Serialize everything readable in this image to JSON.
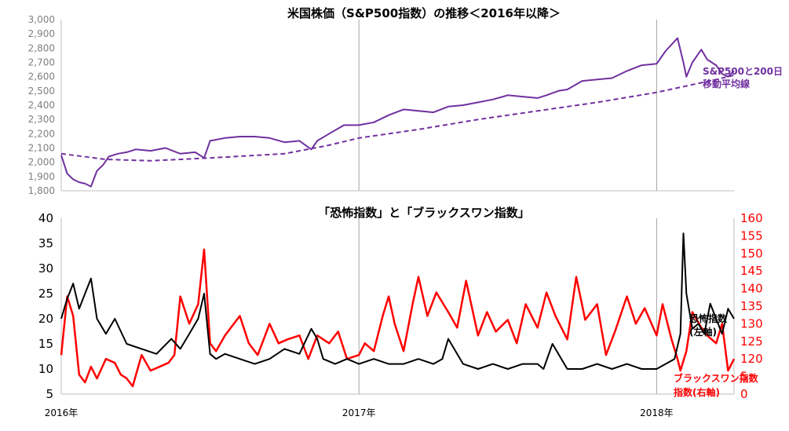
{
  "chart_data": [
    {
      "type": "line",
      "title": "米国株価（S&P500指数）の推移＜2016年以降＞",
      "ylim": [
        1800,
        3000
      ],
      "yticks": [
        "1,800",
        "1,900",
        "2,000",
        "2,100",
        "2,200",
        "2,300",
        "2,400",
        "2,500",
        "2,600",
        "2,700",
        "2,800",
        "2,900",
        "3,000"
      ],
      "xticks": [
        "2016年",
        "2017年",
        "2018年"
      ],
      "xrange": [
        2016.0,
        2018.26
      ],
      "series_label_lines": [
        "S&P500と200日",
        "移動平均線"
      ],
      "colors": {
        "line": "#7030A0",
        "axis_text": "#7f7f7f"
      },
      "series": [
        {
          "name": "S&P500",
          "style": "solid",
          "x": [
            2016.0,
            2016.02,
            2016.04,
            2016.06,
            2016.08,
            2016.1,
            2016.12,
            2016.14,
            2016.16,
            2016.19,
            2016.22,
            2016.25,
            2016.3,
            2016.35,
            2016.4,
            2016.45,
            2016.48,
            2016.5,
            2016.55,
            2016.6,
            2016.65,
            2016.7,
            2016.75,
            2016.8,
            2016.84,
            2016.86,
            2016.9,
            2016.95,
            2017.0,
            2017.05,
            2017.1,
            2017.15,
            2017.2,
            2017.25,
            2017.3,
            2017.35,
            2017.4,
            2017.45,
            2017.5,
            2017.55,
            2017.6,
            2017.63,
            2017.67,
            2017.7,
            2017.75,
            2017.8,
            2017.85,
            2017.9,
            2017.95,
            2018.0,
            2018.03,
            2018.07,
            2018.09,
            2018.1,
            2018.12,
            2018.15,
            2018.17,
            2018.2,
            2018.22,
            2018.24,
            2018.26
          ],
          "values": [
            2050,
            1920,
            1880,
            1860,
            1850,
            1830,
            1940,
            1980,
            2040,
            2060,
            2070,
            2090,
            2080,
            2100,
            2060,
            2070,
            2030,
            2150,
            2170,
            2180,
            2180,
            2170,
            2140,
            2150,
            2090,
            2150,
            2200,
            2260,
            2260,
            2280,
            2330,
            2370,
            2360,
            2350,
            2390,
            2400,
            2420,
            2440,
            2470,
            2460,
            2450,
            2470,
            2500,
            2510,
            2570,
            2580,
            2590,
            2640,
            2680,
            2690,
            2780,
            2870,
            2700,
            2600,
            2700,
            2790,
            2720,
            2680,
            2620,
            2600,
            2640
          ]
        },
        {
          "name": "200日移動平均線",
          "style": "dashed",
          "x": [
            2016.0,
            2016.15,
            2016.3,
            2016.5,
            2016.75,
            2016.9,
            2017.0,
            2017.2,
            2017.4,
            2017.6,
            2017.8,
            2018.0,
            2018.2,
            2018.26
          ],
          "values": [
            2060,
            2020,
            2010,
            2030,
            2060,
            2120,
            2170,
            2230,
            2300,
            2360,
            2420,
            2490,
            2580,
            2610
          ]
        }
      ]
    },
    {
      "type": "line",
      "title": "「恐怖指数」と「ブラックスワン指数」",
      "ylim_left": [
        5,
        40
      ],
      "ylim_right": [
        0,
        160
      ],
      "yticks_left": [
        "5",
        "10",
        "15",
        "20",
        "25",
        "30",
        "35",
        "40"
      ],
      "yticks_right": [
        "0",
        "5",
        "120",
        "125",
        "130",
        "135",
        "140",
        "145",
        "150",
        "155",
        "160"
      ],
      "xticks": [
        "2016年",
        "2017年",
        "2018年"
      ],
      "xrange": [
        2016.0,
        2018.26
      ],
      "colors": {
        "vix": "#000000",
        "skew": "#ff0000"
      },
      "series": [
        {
          "name": "恐怖指数",
          "name_sub": "(左軸)",
          "axis": "left",
          "x": [
            2016.0,
            2016.02,
            2016.04,
            2016.06,
            2016.08,
            2016.1,
            2016.12,
            2016.15,
            2016.18,
            2016.22,
            2016.27,
            2016.32,
            2016.37,
            2016.4,
            2016.43,
            2016.46,
            2016.48,
            2016.5,
            2016.52,
            2016.55,
            2016.6,
            2016.65,
            2016.7,
            2016.75,
            2016.8,
            2016.84,
            2016.86,
            2016.88,
            2016.92,
            2016.96,
            2017.0,
            2017.05,
            2017.1,
            2017.15,
            2017.2,
            2017.25,
            2017.28,
            2017.3,
            2017.35,
            2017.4,
            2017.45,
            2017.5,
            2017.55,
            2017.6,
            2017.62,
            2017.65,
            2017.7,
            2017.75,
            2017.8,
            2017.85,
            2017.9,
            2017.95,
            2018.0,
            2018.03,
            2018.06,
            2018.08,
            2018.09,
            2018.1,
            2018.12,
            2018.14,
            2018.16,
            2018.18,
            2018.2,
            2018.22,
            2018.24,
            2018.26
          ],
          "values": [
            20,
            24,
            27,
            22,
            25,
            28,
            20,
            17,
            20,
            15,
            14,
            13,
            16,
            14,
            17,
            20,
            25,
            13,
            12,
            13,
            12,
            11,
            12,
            14,
            13,
            18,
            16,
            12,
            11,
            12,
            11,
            12,
            11,
            11,
            12,
            11,
            12,
            16,
            11,
            10,
            11,
            10,
            11,
            11,
            10,
            15,
            10,
            10,
            11,
            10,
            11,
            10,
            10,
            11,
            12,
            17,
            37,
            25,
            18,
            19,
            17,
            23,
            20,
            17,
            22,
            20
          ]
        },
        {
          "name": "ブラックスワン指数",
          "name_sub": "指数(右軸)",
          "axis": "right",
          "x": [
            2016.0,
            2016.02,
            2016.04,
            2016.06,
            2016.08,
            2016.1,
            2016.12,
            2016.15,
            2016.18,
            2016.2,
            2016.22,
            2016.24,
            2016.27,
            2016.3,
            2016.33,
            2016.36,
            2016.38,
            2016.4,
            2016.43,
            2016.46,
            2016.48,
            2016.5,
            2016.52,
            2016.55,
            2016.58,
            2016.6,
            2016.63,
            2016.66,
            2016.7,
            2016.73,
            2016.76,
            2016.8,
            2016.83,
            2016.86,
            2016.9,
            2016.93,
            2016.96,
            2017.0,
            2017.02,
            2017.05,
            2017.08,
            2017.1,
            2017.12,
            2017.15,
            2017.18,
            2017.2,
            2017.23,
            2017.26,
            2017.3,
            2017.33,
            2017.36,
            2017.4,
            2017.43,
            2017.46,
            2017.5,
            2017.53,
            2017.56,
            2017.6,
            2017.63,
            2017.66,
            2017.7,
            2017.73,
            2017.76,
            2017.8,
            2017.83,
            2017.86,
            2017.9,
            2017.93,
            2017.96,
            2018.0,
            2018.02,
            2018.05,
            2018.07,
            2018.08,
            2018.1,
            2018.12,
            2018.15,
            2018.17,
            2018.2,
            2018.22,
            2018.24,
            2018.26
          ],
          "values": [
            125,
            140,
            135,
            120,
            118,
            122,
            119,
            124,
            123,
            120,
            119,
            117,
            125,
            121,
            122,
            123,
            125,
            140,
            133,
            138,
            152,
            128,
            126,
            130,
            133,
            135,
            128,
            125,
            133,
            128,
            129,
            130,
            124,
            130,
            128,
            131,
            124,
            125,
            128,
            126,
            135,
            140,
            133,
            126,
            138,
            145,
            135,
            141,
            136,
            132,
            144,
            130,
            136,
            131,
            134,
            128,
            138,
            132,
            141,
            135,
            129,
            145,
            134,
            138,
            125,
            131,
            140,
            133,
            137,
            130,
            138,
            129,
            124,
            121,
            126,
            136,
            132,
            130,
            128,
            133,
            121,
            124
          ]
        }
      ]
    }
  ]
}
